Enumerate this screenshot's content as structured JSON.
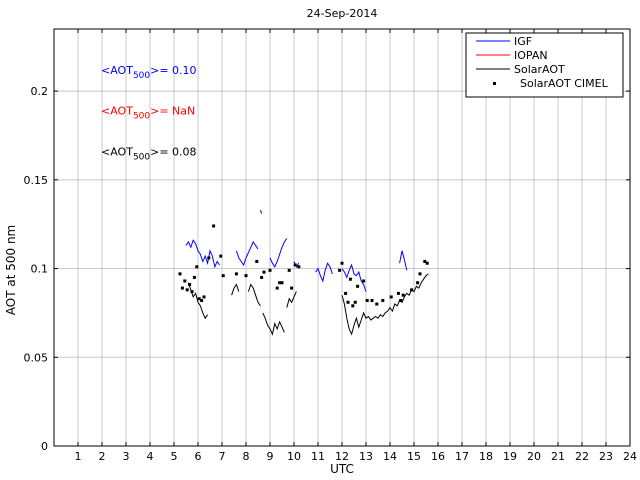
{
  "chart_data": {
    "type": "line",
    "title": "24-Sep-2014",
    "xlabel": "UTC",
    "ylabel": "AOT at 500 nm",
    "xlim": [
      0,
      24
    ],
    "ylim": [
      0,
      0.235
    ],
    "grid": true,
    "legend_position": "top-right",
    "x_ticks": [
      1,
      2,
      3,
      4,
      5,
      6,
      7,
      8,
      9,
      10,
      11,
      12,
      13,
      14,
      15,
      16,
      17,
      18,
      19,
      20,
      21,
      22,
      23,
      24
    ],
    "y_ticks": [
      {
        "value": 0,
        "label": "0"
      },
      {
        "value": 0.05,
        "label": "0.05"
      },
      {
        "value": 0.1,
        "label": "0.1"
      },
      {
        "value": 0.15,
        "label": "0.15"
      },
      {
        "value": 0.2,
        "label": "0.2"
      }
    ],
    "annotations": [
      {
        "prefix": "<AOT",
        "sub": "500",
        "suffix": ">= 0.10",
        "color": "#0000ff",
        "x": 2.5,
        "y": 0.212
      },
      {
        "prefix": "<AOT",
        "sub": "500",
        "suffix": ">=  NaN",
        "color": "#ff0000",
        "x": 2.5,
        "y": 0.189
      },
      {
        "prefix": "<AOT",
        "sub": "500",
        "suffix": ">= 0.08",
        "color": "#000000",
        "x": 2.5,
        "y": 0.166
      }
    ],
    "series": [
      {
        "name": "IGF",
        "style": "line",
        "color": "#0000ff",
        "segments": [
          [
            [
              5.5,
              0.113
            ],
            [
              5.6,
              0.115
            ],
            [
              5.7,
              0.112
            ],
            [
              5.8,
              0.116
            ],
            [
              5.9,
              0.114
            ],
            [
              6.0,
              0.11
            ],
            [
              6.1,
              0.108
            ],
            [
              6.2,
              0.104
            ],
            [
              6.3,
              0.107
            ],
            [
              6.4,
              0.103
            ],
            [
              6.5,
              0.11
            ],
            [
              6.6,
              0.107
            ],
            [
              6.7,
              0.101
            ],
            [
              6.8,
              0.104
            ],
            [
              6.9,
              0.102
            ]
          ],
          [
            [
              7.6,
              0.11
            ],
            [
              7.7,
              0.106
            ],
            [
              7.8,
              0.104
            ],
            [
              7.9,
              0.102
            ],
            [
              8.0,
              0.106
            ],
            [
              8.1,
              0.109
            ],
            [
              8.2,
              0.112
            ],
            [
              8.3,
              0.115
            ],
            [
              8.4,
              0.113
            ],
            [
              8.5,
              0.111
            ]
          ],
          [
            [
              8.6,
              0.133
            ],
            [
              8.65,
              0.131
            ]
          ],
          [
            [
              9.0,
              0.106
            ],
            [
              9.1,
              0.103
            ],
            [
              9.2,
              0.101
            ],
            [
              9.3,
              0.104
            ],
            [
              9.4,
              0.108
            ],
            [
              9.5,
              0.112
            ],
            [
              9.6,
              0.115
            ],
            [
              9.7,
              0.117
            ]
          ],
          [
            [
              10.0,
              0.104
            ],
            [
              10.1,
              0.101
            ],
            [
              10.2,
              0.103
            ]
          ],
          [
            [
              10.9,
              0.098
            ],
            [
              11.0,
              0.1
            ],
            [
              11.1,
              0.096
            ],
            [
              11.2,
              0.093
            ],
            [
              11.3,
              0.099
            ],
            [
              11.4,
              0.103
            ],
            [
              11.5,
              0.101
            ],
            [
              11.6,
              0.097
            ]
          ],
          [
            [
              12.0,
              0.1
            ],
            [
              12.1,
              0.098
            ],
            [
              12.2,
              0.095
            ],
            [
              12.3,
              0.099
            ],
            [
              12.4,
              0.102
            ],
            [
              12.5,
              0.097
            ],
            [
              12.6,
              0.096
            ],
            [
              12.7,
              0.098
            ],
            [
              12.8,
              0.093
            ],
            [
              12.9,
              0.091
            ],
            [
              13.0,
              0.087
            ]
          ],
          [
            [
              14.4,
              0.103
            ],
            [
              14.5,
              0.11
            ],
            [
              14.6,
              0.105
            ],
            [
              14.7,
              0.099
            ]
          ]
        ]
      },
      {
        "name": "IOPAN",
        "style": "line",
        "color": "#ff0000",
        "segments": []
      },
      {
        "name": "SolarAOT",
        "style": "line",
        "color": "#000000",
        "segments": [
          [
            [
              5.6,
              0.092
            ],
            [
              5.7,
              0.088
            ],
            [
              5.8,
              0.084
            ],
            [
              5.9,
              0.086
            ],
            [
              6.0,
              0.081
            ],
            [
              6.1,
              0.079
            ],
            [
              6.2,
              0.075
            ],
            [
              6.3,
              0.072
            ],
            [
              6.4,
              0.074
            ]
          ],
          [
            [
              7.4,
              0.085
            ],
            [
              7.5,
              0.089
            ],
            [
              7.6,
              0.091
            ],
            [
              7.7,
              0.087
            ]
          ],
          [
            [
              8.1,
              0.087
            ],
            [
              8.2,
              0.091
            ],
            [
              8.3,
              0.089
            ],
            [
              8.4,
              0.085
            ],
            [
              8.5,
              0.081
            ],
            [
              8.6,
              0.079
            ]
          ],
          [
            [
              8.7,
              0.075
            ],
            [
              8.8,
              0.072
            ],
            [
              8.9,
              0.068
            ],
            [
              9.0,
              0.066
            ],
            [
              9.1,
              0.063
            ],
            [
              9.2,
              0.069
            ],
            [
              9.3,
              0.066
            ],
            [
              9.4,
              0.07
            ],
            [
              9.5,
              0.067
            ],
            [
              9.6,
              0.064
            ]
          ],
          [
            [
              9.7,
              0.078
            ],
            [
              9.8,
              0.083
            ],
            [
              9.9,
              0.081
            ],
            [
              10.0,
              0.084
            ],
            [
              10.1,
              0.087
            ]
          ],
          [
            [
              12.0,
              0.085
            ],
            [
              12.1,
              0.08
            ],
            [
              12.2,
              0.072
            ],
            [
              12.3,
              0.066
            ],
            [
              12.4,
              0.063
            ],
            [
              12.5,
              0.068
            ],
            [
              12.6,
              0.072
            ],
            [
              12.7,
              0.067
            ],
            [
              12.8,
              0.071
            ],
            [
              12.9,
              0.075
            ],
            [
              13.0,
              0.072
            ],
            [
              13.1,
              0.073
            ],
            [
              13.2,
              0.071
            ],
            [
              13.3,
              0.072
            ],
            [
              13.4,
              0.073
            ],
            [
              13.5,
              0.072
            ],
            [
              13.6,
              0.074
            ],
            [
              13.7,
              0.073
            ],
            [
              13.8,
              0.075
            ],
            [
              13.9,
              0.076
            ],
            [
              14.0,
              0.078
            ],
            [
              14.1,
              0.076
            ],
            [
              14.2,
              0.08
            ],
            [
              14.3,
              0.079
            ],
            [
              14.4,
              0.082
            ],
            [
              14.5,
              0.081
            ],
            [
              14.6,
              0.084
            ],
            [
              14.7,
              0.086
            ],
            [
              14.8,
              0.085
            ],
            [
              14.9,
              0.088
            ],
            [
              15.0,
              0.087
            ],
            [
              15.1,
              0.09
            ],
            [
              15.2,
              0.089
            ],
            [
              15.3,
              0.092
            ],
            [
              15.4,
              0.094
            ],
            [
              15.5,
              0.096
            ],
            [
              15.6,
              0.097
            ]
          ]
        ]
      },
      {
        "name": "SolarAOT CIMEL",
        "style": "points",
        "color": "#000000",
        "points": [
          [
            5.25,
            0.097
          ],
          [
            5.35,
            0.089
          ],
          [
            5.45,
            0.093
          ],
          [
            5.55,
            0.088
          ],
          [
            5.65,
            0.091
          ],
          [
            5.75,
            0.087
          ],
          [
            5.85,
            0.095
          ],
          [
            5.95,
            0.101
          ],
          [
            6.05,
            0.083
          ],
          [
            6.15,
            0.082
          ],
          [
            6.25,
            0.084
          ],
          [
            6.45,
            0.106
          ],
          [
            6.65,
            0.124
          ],
          [
            6.95,
            0.107
          ],
          [
            7.05,
            0.096
          ],
          [
            7.6,
            0.097
          ],
          [
            8.0,
            0.096
          ],
          [
            8.45,
            0.104
          ],
          [
            8.65,
            0.095
          ],
          [
            8.75,
            0.098
          ],
          [
            9.0,
            0.099
          ],
          [
            9.3,
            0.089
          ],
          [
            9.4,
            0.092
          ],
          [
            9.5,
            0.092
          ],
          [
            9.8,
            0.099
          ],
          [
            9.9,
            0.089
          ],
          [
            10.05,
            0.102
          ],
          [
            10.2,
            0.101
          ],
          [
            11.9,
            0.099
          ],
          [
            12.0,
            0.103
          ],
          [
            12.15,
            0.086
          ],
          [
            12.25,
            0.081
          ],
          [
            12.35,
            0.094
          ],
          [
            12.45,
            0.079
          ],
          [
            12.55,
            0.081
          ],
          [
            12.65,
            0.09
          ],
          [
            12.9,
            0.093
          ],
          [
            13.05,
            0.082
          ],
          [
            13.25,
            0.082
          ],
          [
            13.45,
            0.08
          ],
          [
            13.7,
            0.082
          ],
          [
            14.05,
            0.084
          ],
          [
            14.35,
            0.086
          ],
          [
            14.45,
            0.082
          ],
          [
            14.55,
            0.085
          ],
          [
            14.9,
            0.088
          ],
          [
            15.15,
            0.092
          ],
          [
            15.25,
            0.097
          ],
          [
            15.45,
            0.104
          ],
          [
            15.55,
            0.103
          ]
        ]
      }
    ]
  }
}
